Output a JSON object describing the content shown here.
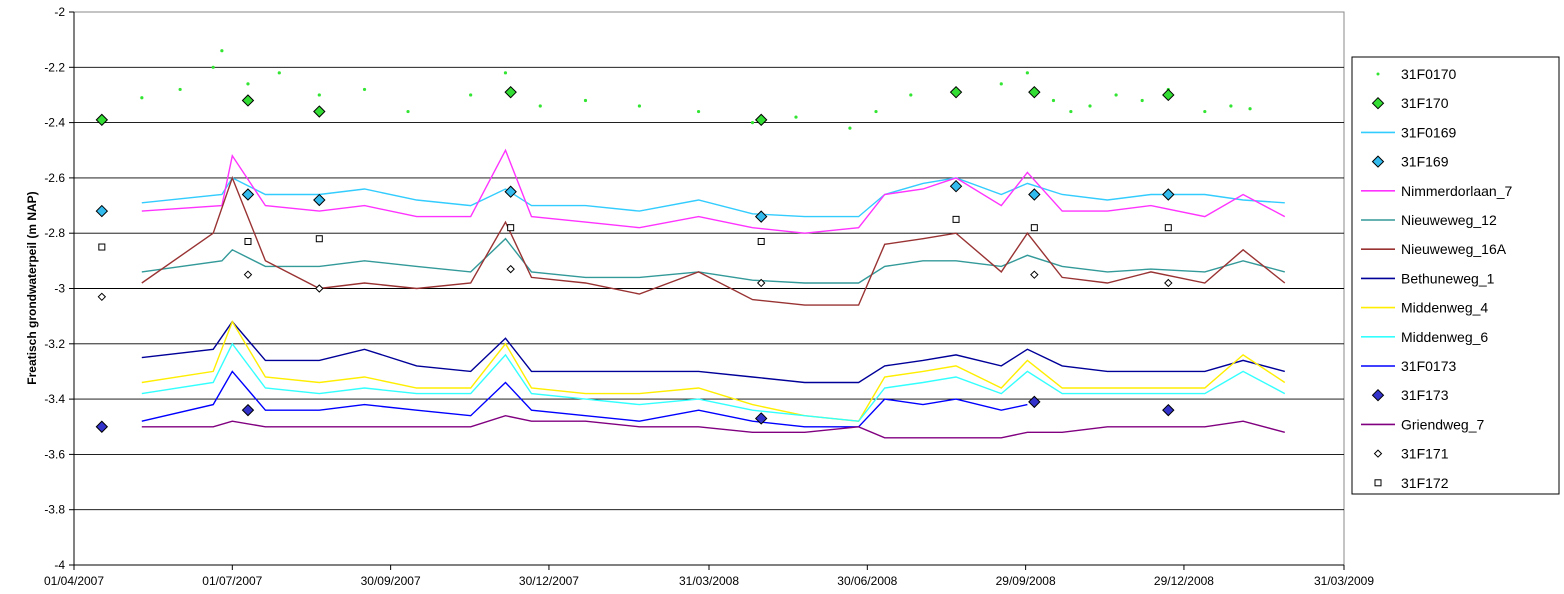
{
  "chart_data": {
    "type": "line",
    "title": "",
    "xlabel": "",
    "ylabel": "Freatisch grondwaterpeil (m NAP)",
    "ylim": [
      -4,
      -2
    ],
    "xlim": [
      "2007-04-01",
      "2009-03-31"
    ],
    "y_ticks": [
      "-2",
      "-2.2",
      "-2.4",
      "-2.6",
      "-2.8",
      "-3",
      "-3.2",
      "-3.4",
      "-3.6",
      "-3.8",
      "-4"
    ],
    "y_tick_values": [
      -2,
      -2.2,
      -2.4,
      -2.6,
      -2.8,
      -3,
      -3.2,
      -3.4,
      -3.6,
      -3.8,
      -4
    ],
    "x_ticks": [
      "01/04/2007",
      "01/07/2007",
      "30/09/2007",
      "30/12/2007",
      "31/03/2008",
      "30/06/2008",
      "29/09/2008",
      "29/12/2008",
      "31/03/2009"
    ],
    "x_tick_dates": [
      "2007-04-01",
      "2007-07-01",
      "2007-09-30",
      "2007-12-30",
      "2008-03-31",
      "2008-06-30",
      "2008-09-29",
      "2008-12-29",
      "2009-03-31"
    ],
    "grid": "horizontal",
    "legend_position": "right",
    "series": [
      {
        "name": "31F0170",
        "kind": "dots",
        "color": "#33e533",
        "x": [
          "2007-05-10",
          "2007-06-01",
          "2007-06-20",
          "2007-06-25",
          "2007-07-10",
          "2007-07-28",
          "2007-08-20",
          "2007-09-15",
          "2007-10-10",
          "2007-11-15",
          "2007-12-05",
          "2007-12-25",
          "2008-01-20",
          "2008-02-20",
          "2008-03-25",
          "2008-04-25",
          "2008-05-20",
          "2008-06-20",
          "2008-07-05",
          "2008-07-25",
          "2008-08-20",
          "2008-09-15",
          "2008-09-30",
          "2008-10-15",
          "2008-10-25",
          "2008-11-05",
          "2008-11-20",
          "2008-12-05",
          "2008-12-20",
          "2009-01-10",
          "2009-01-25",
          "2009-02-05"
        ],
        "y": [
          -2.31,
          -2.28,
          -2.2,
          -2.14,
          -2.26,
          -2.22,
          -2.3,
          -2.28,
          -2.36,
          -2.3,
          -2.22,
          -2.34,
          -2.32,
          -2.34,
          -2.36,
          -2.4,
          -2.38,
          -2.42,
          -2.36,
          -2.3,
          -2.28,
          -2.26,
          -2.22,
          -2.32,
          -2.36,
          -2.34,
          -2.3,
          -2.32,
          -2.28,
          -2.36,
          -2.34,
          -2.35
        ]
      },
      {
        "name": "31F170",
        "kind": "marker",
        "marker": "diamond",
        "color": "#33dd33",
        "x": [
          "2007-04-17",
          "2007-07-10",
          "2007-08-20",
          "2007-12-08",
          "2008-04-30",
          "2008-08-20",
          "2008-10-04",
          "2008-12-20"
        ],
        "y": [
          -2.39,
          -2.32,
          -2.36,
          -2.29,
          -2.39,
          -2.29,
          -2.29,
          -2.3
        ]
      },
      {
        "name": "31F0169",
        "kind": "line",
        "color": "#33ccff",
        "x": [
          "2007-05-10",
          "2007-06-25",
          "2007-07-01",
          "2007-07-20",
          "2007-08-20",
          "2007-09-15",
          "2007-10-15",
          "2007-11-15",
          "2007-12-05",
          "2007-12-20",
          "2008-01-20",
          "2008-02-20",
          "2008-03-25",
          "2008-04-25",
          "2008-05-25",
          "2008-06-25",
          "2008-07-10",
          "2008-08-01",
          "2008-08-20",
          "2008-09-15",
          "2008-09-30",
          "2008-10-20",
          "2008-11-15",
          "2008-12-10",
          "2009-01-10",
          "2009-02-01",
          "2009-02-25"
        ],
        "y": [
          -2.69,
          -2.66,
          -2.6,
          -2.66,
          -2.66,
          -2.64,
          -2.68,
          -2.7,
          -2.64,
          -2.7,
          -2.7,
          -2.72,
          -2.68,
          -2.73,
          -2.74,
          -2.74,
          -2.66,
          -2.62,
          -2.6,
          -2.66,
          -2.62,
          -2.66,
          -2.68,
          -2.66,
          -2.66,
          -2.68,
          -2.69
        ]
      },
      {
        "name": "31F169",
        "kind": "marker",
        "marker": "diamond",
        "color": "#33bbee",
        "x": [
          "2007-04-17",
          "2007-07-10",
          "2007-08-20",
          "2007-12-08",
          "2008-04-30",
          "2008-08-20",
          "2008-10-04",
          "2008-12-20"
        ],
        "y": [
          -2.72,
          -2.66,
          -2.68,
          -2.65,
          -2.74,
          -2.63,
          -2.66,
          -2.66
        ]
      },
      {
        "name": "Nimmerdorlaan_7",
        "kind": "line",
        "color": "#ff33ff",
        "x": [
          "2007-05-10",
          "2007-06-25",
          "2007-07-01",
          "2007-07-20",
          "2007-08-20",
          "2007-09-15",
          "2007-10-15",
          "2007-11-15",
          "2007-12-05",
          "2007-12-20",
          "2008-01-20",
          "2008-02-20",
          "2008-03-25",
          "2008-04-25",
          "2008-05-25",
          "2008-06-25",
          "2008-07-10",
          "2008-08-01",
          "2008-08-20",
          "2008-09-15",
          "2008-09-30",
          "2008-10-20",
          "2008-11-15",
          "2008-12-10",
          "2009-01-10",
          "2009-02-01",
          "2009-02-25"
        ],
        "y": [
          -2.72,
          -2.7,
          -2.52,
          -2.7,
          -2.72,
          -2.7,
          -2.74,
          -2.74,
          -2.5,
          -2.74,
          -2.76,
          -2.78,
          -2.74,
          -2.78,
          -2.8,
          -2.78,
          -2.66,
          -2.64,
          -2.6,
          -2.7,
          -2.58,
          -2.72,
          -2.72,
          -2.7,
          -2.74,
          -2.66,
          -2.74
        ]
      },
      {
        "name": "Nieuweweg_12",
        "kind": "line",
        "color": "#339999",
        "x": [
          "2007-05-10",
          "2007-06-25",
          "2007-07-01",
          "2007-07-20",
          "2007-08-20",
          "2007-09-15",
          "2007-10-15",
          "2007-11-15",
          "2007-12-05",
          "2007-12-20",
          "2008-01-20",
          "2008-02-20",
          "2008-03-25",
          "2008-04-25",
          "2008-05-25",
          "2008-06-25",
          "2008-07-10",
          "2008-08-01",
          "2008-08-20",
          "2008-09-15",
          "2008-09-30",
          "2008-10-20",
          "2008-11-15",
          "2008-12-10",
          "2009-01-10",
          "2009-02-01",
          "2009-02-25"
        ],
        "y": [
          -2.94,
          -2.9,
          -2.86,
          -2.92,
          -2.92,
          -2.9,
          -2.92,
          -2.94,
          -2.82,
          -2.94,
          -2.96,
          -2.96,
          -2.94,
          -2.97,
          -2.98,
          -2.98,
          -2.92,
          -2.9,
          -2.9,
          -2.92,
          -2.88,
          -2.92,
          -2.94,
          -2.93,
          -2.94,
          -2.9,
          -2.94
        ]
      },
      {
        "name": "Nieuweweg_16A",
        "kind": "line",
        "color": "#993333",
        "x": [
          "2007-05-10",
          "2007-06-20",
          "2007-07-01",
          "2007-07-20",
          "2007-08-20",
          "2007-09-15",
          "2007-10-15",
          "2007-11-15",
          "2007-12-05",
          "2007-12-20",
          "2008-01-20",
          "2008-02-20",
          "2008-03-25",
          "2008-04-25",
          "2008-05-25",
          "2008-06-25",
          "2008-07-10",
          "2008-08-01",
          "2008-08-20",
          "2008-09-15",
          "2008-09-30",
          "2008-10-20",
          "2008-11-15",
          "2008-12-10",
          "2009-01-10",
          "2009-02-01",
          "2009-02-25"
        ],
        "y": [
          -2.98,
          -2.8,
          -2.6,
          -2.9,
          -3.0,
          -2.98,
          -3.0,
          -2.98,
          -2.76,
          -2.96,
          -2.98,
          -3.02,
          -2.94,
          -3.04,
          -3.06,
          -3.06,
          -2.84,
          -2.82,
          -2.8,
          -2.94,
          -2.8,
          -2.96,
          -2.98,
          -2.94,
          -2.98,
          -2.86,
          -2.98
        ]
      },
      {
        "name": "Bethuneweg_1",
        "kind": "line",
        "color": "#000099",
        "x": [
          "2007-05-10",
          "2007-06-20",
          "2007-07-01",
          "2007-07-20",
          "2007-08-20",
          "2007-09-15",
          "2007-10-15",
          "2007-11-15",
          "2007-12-05",
          "2007-12-20",
          "2008-01-20",
          "2008-02-20",
          "2008-03-25",
          "2008-04-25",
          "2008-05-25",
          "2008-06-25",
          "2008-07-10",
          "2008-08-01",
          "2008-08-20",
          "2008-09-15",
          "2008-09-30",
          "2008-10-20",
          "2008-11-15",
          "2008-12-10",
          "2009-01-10",
          "2009-02-01",
          "2009-02-25"
        ],
        "y": [
          -3.25,
          -3.22,
          -3.12,
          -3.26,
          -3.26,
          -3.22,
          -3.28,
          -3.3,
          -3.18,
          -3.3,
          -3.3,
          -3.3,
          -3.3,
          -3.32,
          -3.34,
          -3.34,
          -3.28,
          -3.26,
          -3.24,
          -3.28,
          -3.22,
          -3.28,
          -3.3,
          -3.3,
          -3.3,
          -3.26,
          -3.3
        ]
      },
      {
        "name": "Middenweg_4",
        "kind": "line",
        "color": "#ffee00",
        "x": [
          "2007-05-10",
          "2007-06-20",
          "2007-07-01",
          "2007-07-20",
          "2007-08-20",
          "2007-09-15",
          "2007-10-15",
          "2007-11-15",
          "2007-12-05",
          "2007-12-20",
          "2008-01-20",
          "2008-02-20",
          "2008-03-25",
          "2008-04-25",
          "2008-05-25",
          "2008-06-25",
          "2008-07-10",
          "2008-08-01",
          "2008-08-20",
          "2008-09-15",
          "2008-09-30",
          "2008-10-20",
          "2008-11-15",
          "2008-12-10",
          "2009-01-10",
          "2009-02-01",
          "2009-02-25"
        ],
        "y": [
          -3.34,
          -3.3,
          -3.12,
          -3.32,
          -3.34,
          -3.32,
          -3.36,
          -3.36,
          -3.2,
          -3.36,
          -3.38,
          -3.38,
          -3.36,
          -3.42,
          -3.46,
          -3.48,
          -3.32,
          -3.3,
          -3.28,
          -3.36,
          -3.26,
          -3.36,
          -3.36,
          -3.36,
          -3.36,
          -3.24,
          -3.34
        ]
      },
      {
        "name": "Middenweg_6",
        "kind": "line",
        "color": "#33ffff",
        "x": [
          "2007-05-10",
          "2007-06-20",
          "2007-07-01",
          "2007-07-20",
          "2007-08-20",
          "2007-09-15",
          "2007-10-15",
          "2007-11-15",
          "2007-12-05",
          "2007-12-20",
          "2008-01-20",
          "2008-02-20",
          "2008-03-25",
          "2008-04-25",
          "2008-05-25",
          "2008-06-25",
          "2008-07-10",
          "2008-08-01",
          "2008-08-20",
          "2008-09-15",
          "2008-09-30",
          "2008-10-20",
          "2008-11-15",
          "2008-12-10",
          "2009-01-10",
          "2009-02-01",
          "2009-02-25"
        ],
        "y": [
          -3.38,
          -3.34,
          -3.2,
          -3.36,
          -3.38,
          -3.36,
          -3.38,
          -3.38,
          -3.24,
          -3.38,
          -3.4,
          -3.42,
          -3.4,
          -3.44,
          -3.46,
          -3.48,
          -3.36,
          -3.34,
          -3.32,
          -3.38,
          -3.3,
          -3.38,
          -3.38,
          -3.38,
          -3.38,
          -3.3,
          -3.38
        ]
      },
      {
        "name": "31F0173",
        "kind": "line",
        "color": "#0000ff",
        "x": [
          "2007-05-10",
          "2007-06-20",
          "2007-07-01",
          "2007-07-20",
          "2007-08-20",
          "2007-09-15",
          "2007-10-15",
          "2007-11-15",
          "2007-12-05",
          "2007-12-20",
          "2008-01-20",
          "2008-02-20",
          "2008-03-25",
          "2008-04-25",
          "2008-05-25",
          "2008-06-25",
          "2008-07-10",
          "2008-08-01",
          "2008-08-20",
          "2008-09-15",
          "2008-09-30"
        ],
        "y": [
          -3.48,
          -3.42,
          -3.3,
          -3.44,
          -3.44,
          -3.42,
          -3.44,
          -3.46,
          -3.34,
          -3.44,
          -3.46,
          -3.48,
          -3.44,
          -3.48,
          -3.5,
          -3.5,
          -3.4,
          -3.42,
          -3.4,
          -3.44,
          -3.42
        ]
      },
      {
        "name": "31F173",
        "kind": "marker",
        "marker": "diamond",
        "color": "#3333cc",
        "x": [
          "2007-04-17",
          "2007-07-10",
          "2008-04-30",
          "2008-10-04",
          "2008-12-20"
        ],
        "y": [
          -3.5,
          -3.44,
          -3.47,
          -3.41,
          -3.44
        ]
      },
      {
        "name": "Griendweg_7",
        "kind": "line",
        "color": "#800080",
        "x": [
          "2007-05-10",
          "2007-06-20",
          "2007-07-01",
          "2007-07-20",
          "2007-08-20",
          "2007-09-15",
          "2007-10-15",
          "2007-11-15",
          "2007-12-05",
          "2007-12-20",
          "2008-01-20",
          "2008-02-20",
          "2008-03-25",
          "2008-04-25",
          "2008-05-25",
          "2008-06-25",
          "2008-07-10",
          "2008-08-01",
          "2008-08-20",
          "2008-09-15",
          "2008-09-30",
          "2008-10-20",
          "2008-11-15",
          "2008-12-10",
          "2009-01-10",
          "2009-02-01",
          "2009-02-25"
        ],
        "y": [
          -3.5,
          -3.5,
          -3.48,
          -3.5,
          -3.5,
          -3.5,
          -3.5,
          -3.5,
          -3.46,
          -3.48,
          -3.48,
          -3.5,
          -3.5,
          -3.52,
          -3.52,
          -3.5,
          -3.54,
          -3.54,
          -3.54,
          -3.54,
          -3.52,
          -3.52,
          -3.5,
          -3.5,
          -3.5,
          -3.48,
          -3.52
        ]
      },
      {
        "name": "31F171",
        "kind": "marker",
        "marker": "open-diamond",
        "color": "#000000",
        "x": [
          "2007-04-17",
          "2007-07-10",
          "2007-08-20",
          "2007-12-08",
          "2008-04-30",
          "2008-10-04",
          "2008-12-20"
        ],
        "y": [
          -3.03,
          -2.95,
          -3.0,
          -2.93,
          -2.98,
          -2.95,
          -2.98
        ]
      },
      {
        "name": "31F172",
        "kind": "marker",
        "marker": "open-square",
        "color": "#000000",
        "x": [
          "2007-04-17",
          "2007-07-10",
          "2007-08-20",
          "2007-12-08",
          "2008-04-30",
          "2008-08-20",
          "2008-10-04",
          "2008-12-20"
        ],
        "y": [
          -2.85,
          -2.83,
          -2.82,
          -2.78,
          -2.83,
          -2.75,
          -2.78,
          -2.78
        ]
      }
    ]
  }
}
